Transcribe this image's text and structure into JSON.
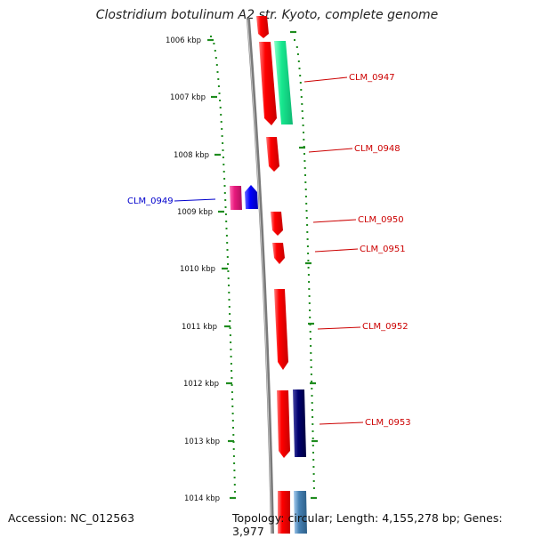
{
  "title": "Clostridium botulinum A2 str. Kyoto, complete genome",
  "footer": {
    "accession": "Accession: NC_012563",
    "summary": "Topology: circular; Length: 4,155,278 bp; Genes: 3,977"
  },
  "colors": {
    "backbone": "#7a7a7a",
    "tick": "#1f8c1f",
    "forward_gene": "#ff0000",
    "forward_label": "#cc0000",
    "reverse_label": "#0000cc",
    "magenta_gene": "#e8197d",
    "blue_gene": "#0000ff",
    "green_gene": "#17e88f",
    "navy_gene": "#00006e",
    "steel_gene": "#4682b4"
  },
  "ruler_labels": [
    "1006 kbp",
    "1007 kbp",
    "1008 kbp",
    "1009 kbp",
    "1010 kbp",
    "1011 kbp",
    "1012 kbp",
    "1013 kbp",
    "1014 kbp"
  ],
  "genes": [
    {
      "label": "CLM_0947",
      "strand": "forward",
      "color": "#ff0000"
    },
    {
      "label": "CLM_0948",
      "strand": "forward",
      "color": "#ff0000"
    },
    {
      "label": "CLM_0949",
      "strand": "reverse",
      "color": "#0000ff"
    },
    {
      "label": "CLM_0950",
      "strand": "forward",
      "color": "#ff0000"
    },
    {
      "label": "CLM_0951",
      "strand": "forward",
      "color": "#ff0000"
    },
    {
      "label": "CLM_0952",
      "strand": "forward",
      "color": "#ff0000"
    },
    {
      "label": "CLM_0953",
      "strand": "forward",
      "color": "#ff0000"
    }
  ]
}
